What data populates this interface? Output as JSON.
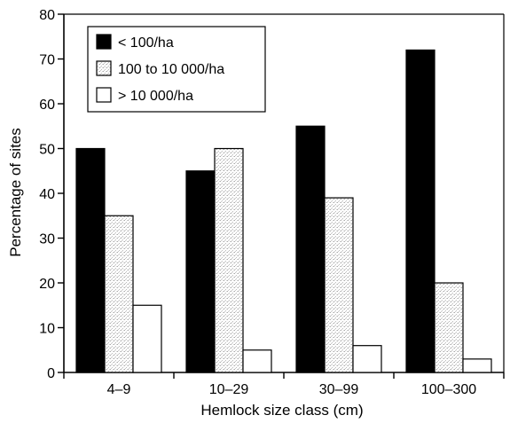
{
  "chart_data": {
    "type": "bar",
    "title": "",
    "xlabel": "Hemlock size class (cm)",
    "ylabel": "Percentage of sites",
    "ylim": [
      0,
      80
    ],
    "yticks": [
      0,
      10,
      20,
      30,
      40,
      50,
      60,
      70,
      80
    ],
    "categories": [
      "4–9",
      "10–29",
      "30–99",
      "100–300"
    ],
    "series": [
      {
        "name": "< 100/ha",
        "values": [
          50,
          45,
          55,
          72
        ],
        "color": "#000000",
        "fill_style": "solid"
      },
      {
        "name": "100 to 10 000/ha",
        "values": [
          35,
          50,
          39,
          20
        ],
        "color": "#e6e6e6",
        "fill_style": "stippled"
      },
      {
        "name": "> 10 000/ha",
        "values": [
          15,
          5,
          6,
          3
        ],
        "color": "#ffffff",
        "fill_style": "white"
      }
    ],
    "legend_position": "top-left",
    "grid": false
  }
}
